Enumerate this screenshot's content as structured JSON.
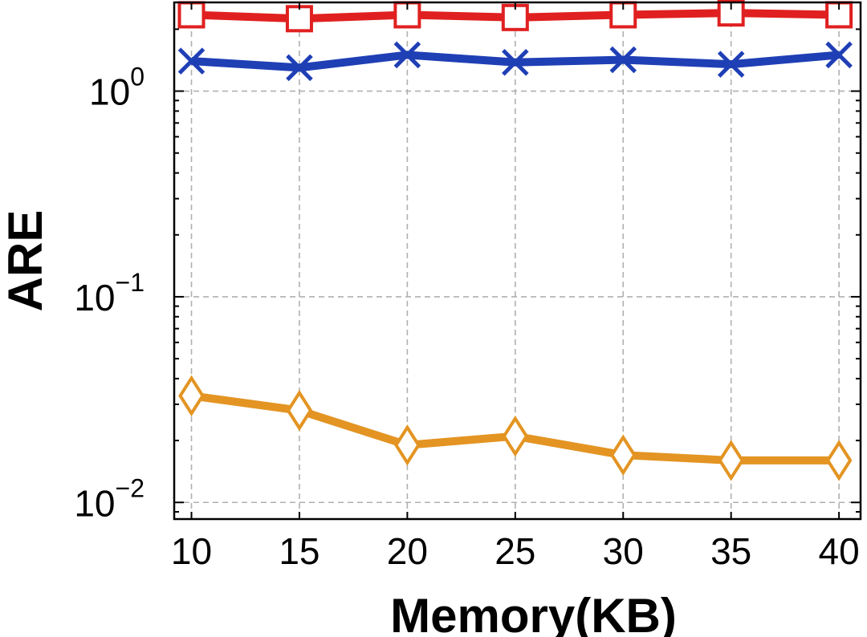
{
  "chart_data": {
    "type": "line",
    "xlabel": "Memory(KB)",
    "ylabel": "ARE",
    "x": [
      10,
      15,
      20,
      25,
      30,
      35,
      40
    ],
    "xticks": [
      "10",
      "15",
      "20",
      "25",
      "30",
      "35",
      "40"
    ],
    "xlim": [
      9.2,
      41.0
    ],
    "yscale": "log",
    "ylim": [
      0.0083,
      2.7
    ],
    "yticks": [
      {
        "value": 1,
        "base": "10",
        "exp": "0"
      },
      {
        "value": 0.1,
        "base": "10",
        "exp": "−1"
      },
      {
        "value": 0.01,
        "base": "10",
        "exp": "−2"
      }
    ],
    "grid": true,
    "series": [
      {
        "marker": "square",
        "color": "#e02020",
        "values": [
          2.35,
          2.25,
          2.35,
          2.28,
          2.35,
          2.4,
          2.35
        ]
      },
      {
        "marker": "x",
        "color": "#1f3fb5",
        "values": [
          1.4,
          1.3,
          1.5,
          1.38,
          1.42,
          1.35,
          1.5
        ]
      },
      {
        "marker": "diamond",
        "color": "#e39422",
        "values": [
          0.033,
          0.028,
          0.019,
          0.021,
          0.017,
          0.016,
          0.016
        ]
      }
    ]
  }
}
